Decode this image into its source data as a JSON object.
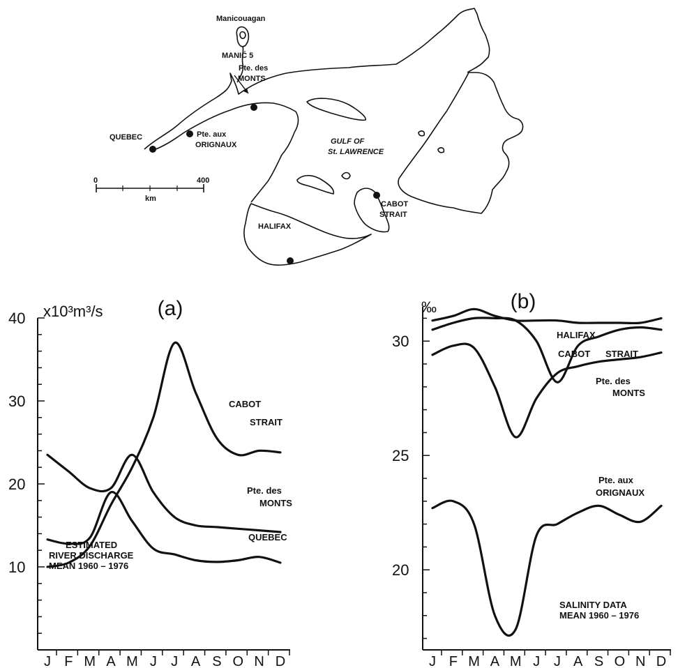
{
  "map": {
    "labels": {
      "manicouagan": "Manicouagan",
      "manic5": "MANIĆ 5",
      "pte_des_monts_1": "Pte. des",
      "pte_des_monts_2": "MONTS",
      "quebec": "QUEBEC",
      "pte_aux_1": "Pte. aux",
      "pte_aux_2": "ORIGNAUX",
      "gulf_1": "GULF OF",
      "gulf_2": "St. LAWRENCE",
      "cabot_1": "CABOT",
      "cabot_2": "STRAIT",
      "halifax": "HALIFAX"
    },
    "scale": {
      "start": "0",
      "end": "400",
      "unit": "km"
    }
  },
  "chart_data": [
    {
      "type": "line",
      "panel": "(a)",
      "unit_label": "x10³m³/s",
      "x": [
        "J",
        "F",
        "M",
        "A",
        "M",
        "J",
        "J",
        "A",
        "S",
        "O",
        "N",
        "D"
      ],
      "ylim": [
        0,
        40
      ],
      "yticks": [
        "10",
        "20",
        "30",
        "40"
      ],
      "annotation": [
        "ESTIMATED",
        "RIVER DISCHARGE",
        "MEAN 1960 – 1976"
      ],
      "series": [
        {
          "name": "CABOT STRAIT",
          "name_lines": [
            "CABOT",
            "STRAIT"
          ],
          "values": [
            10,
            10.5,
            12.5,
            17.5,
            22,
            28,
            37,
            31,
            25.5,
            23.5,
            24,
            23.8
          ]
        },
        {
          "name": "Pte. des MONTS",
          "name_lines": [
            "Pte. des",
            "MONTS"
          ],
          "values": [
            23.5,
            21.5,
            19.5,
            19.5,
            23.5,
            19,
            16,
            15,
            14.8,
            14.6,
            14.4,
            14.2
          ]
        },
        {
          "name": "QUEBEC",
          "name_lines": [
            "QUEBEC"
          ],
          "values": [
            13.3,
            12.8,
            13.5,
            19,
            15.5,
            12.2,
            11.5,
            10.8,
            10.6,
            10.8,
            11.2,
            10.5
          ]
        }
      ]
    },
    {
      "type": "line",
      "panel": "(b)",
      "unit_label": "‰",
      "x": [
        "J",
        "F",
        "M",
        "A",
        "M",
        "J",
        "J",
        "A",
        "S",
        "O",
        "N",
        "D"
      ],
      "ylim": [
        16.5,
        31.5
      ],
      "yticks": [
        "20",
        "25",
        "30"
      ],
      "annotation": [
        "SALINITY DATA",
        "MEAN 1960 – 1976"
      ],
      "series": [
        {
          "name": "HALIFAX",
          "name_lines": [
            "HALIFAX"
          ],
          "values": [
            30.9,
            31.1,
            31.4,
            31.1,
            30.9,
            30.9,
            30.9,
            30.8,
            30.8,
            30.8,
            30.8,
            31.0
          ]
        },
        {
          "name": "CABOT STRAIT",
          "name_lines": [
            "CABOT",
            "STRAIT"
          ],
          "values": [
            30.5,
            30.8,
            31.0,
            31.0,
            30.9,
            30.0,
            28.2,
            29.8,
            30.2,
            30.5,
            30.6,
            30.5
          ]
        },
        {
          "name": "Pte. des MONTS",
          "name_lines": [
            "Pte. des",
            "MONTS"
          ],
          "values": [
            29.4,
            29.8,
            29.7,
            28.0,
            25.8,
            27.5,
            28.6,
            28.9,
            29.1,
            29.2,
            29.3,
            29.5
          ]
        },
        {
          "name": "Pte. aux ORIGNAUX",
          "name_lines": [
            "Pte. aux",
            "ORIGNAUX"
          ],
          "values": [
            22.7,
            23.0,
            22.0,
            18.0,
            17.4,
            21.5,
            22.0,
            22.5,
            22.8,
            22.4,
            22.1,
            22.8
          ]
        }
      ]
    }
  ]
}
